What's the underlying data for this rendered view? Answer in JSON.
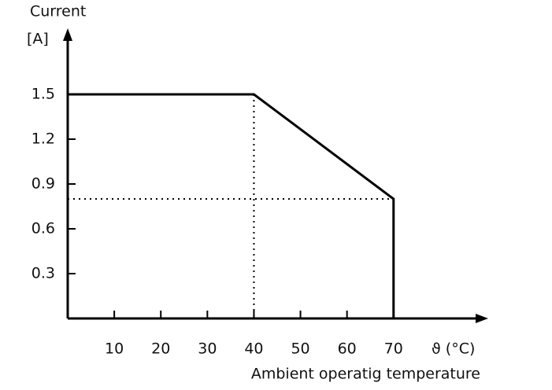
{
  "chart_data": {
    "type": "line",
    "y_label_line1": "Current",
    "y_label_line2": "[A]",
    "x_unit": "ϑ (°C)",
    "x_label": "Ambient operatig temperature",
    "x": [
      0,
      40,
      70,
      70
    ],
    "series": [
      {
        "name": null,
        "color": "#000000",
        "values": [
          1.5,
          1.5,
          0.8,
          0
        ]
      }
    ],
    "xlim": [
      0,
      90
    ],
    "ylim": [
      0,
      1.9
    ],
    "xticks": [
      10,
      20,
      30,
      40,
      50,
      60,
      70
    ],
    "yticks": [
      0.3,
      0.6,
      0.9,
      1.2,
      1.5
    ],
    "grid": false
  }
}
